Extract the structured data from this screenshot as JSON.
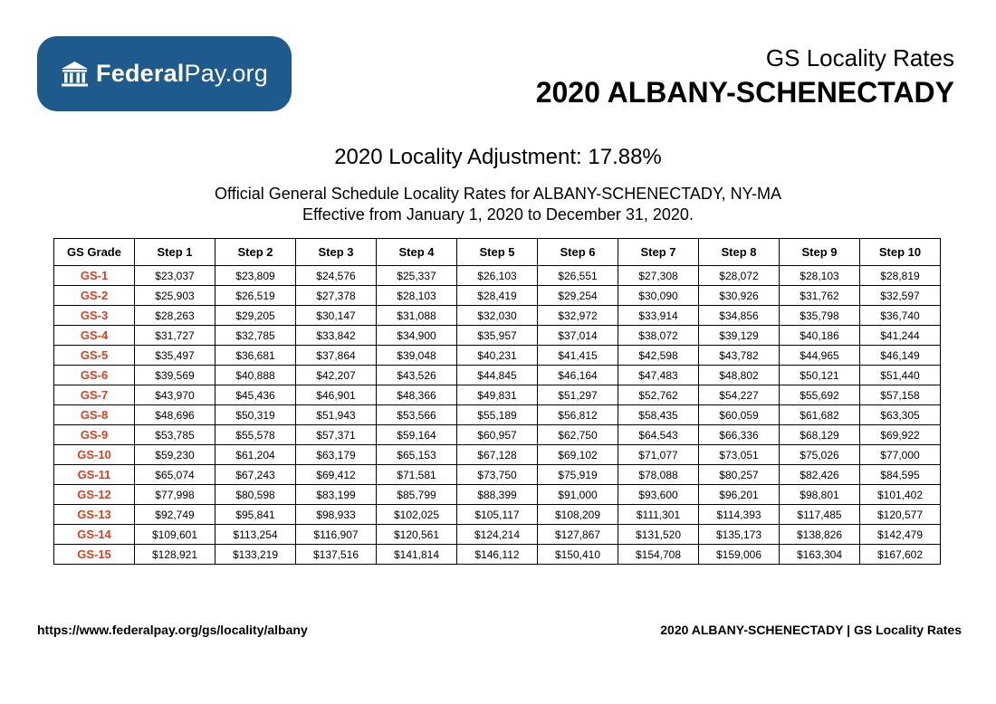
{
  "logo": {
    "brand_bold": "Federal",
    "brand_regular": "Pay.org",
    "icon": "building-icon"
  },
  "header": {
    "subtitle": "GS Locality Rates",
    "title": "2020 ALBANY-SCHENECTADY"
  },
  "adjustment": "2020 Locality Adjustment: 17.88%",
  "official_line1": "Official General Schedule Locality Rates for ALBANY-SCHENECTADY, NY-MA",
  "official_line2": "Effective from January 1, 2020 to December 31, 2020.",
  "table": {
    "headers": [
      "GS Grade",
      "Step 1",
      "Step 2",
      "Step 3",
      "Step 4",
      "Step 5",
      "Step 6",
      "Step 7",
      "Step 8",
      "Step 9",
      "Step 10"
    ],
    "rows": [
      [
        "GS-1",
        "$23,037",
        "$23,809",
        "$24,576",
        "$25,337",
        "$26,103",
        "$26,551",
        "$27,308",
        "$28,072",
        "$28,103",
        "$28,819"
      ],
      [
        "GS-2",
        "$25,903",
        "$26,519",
        "$27,378",
        "$28,103",
        "$28,419",
        "$29,254",
        "$30,090",
        "$30,926",
        "$31,762",
        "$32,597"
      ],
      [
        "GS-3",
        "$28,263",
        "$29,205",
        "$30,147",
        "$31,088",
        "$32,030",
        "$32,972",
        "$33,914",
        "$34,856",
        "$35,798",
        "$36,740"
      ],
      [
        "GS-4",
        "$31,727",
        "$32,785",
        "$33,842",
        "$34,900",
        "$35,957",
        "$37,014",
        "$38,072",
        "$39,129",
        "$40,186",
        "$41,244"
      ],
      [
        "GS-5",
        "$35,497",
        "$36,681",
        "$37,864",
        "$39,048",
        "$40,231",
        "$41,415",
        "$42,598",
        "$43,782",
        "$44,965",
        "$46,149"
      ],
      [
        "GS-6",
        "$39,569",
        "$40,888",
        "$42,207",
        "$43,526",
        "$44,845",
        "$46,164",
        "$47,483",
        "$48,802",
        "$50,121",
        "$51,440"
      ],
      [
        "GS-7",
        "$43,970",
        "$45,436",
        "$46,901",
        "$48,366",
        "$49,831",
        "$51,297",
        "$52,762",
        "$54,227",
        "$55,692",
        "$57,158"
      ],
      [
        "GS-8",
        "$48,696",
        "$50,319",
        "$51,943",
        "$53,566",
        "$55,189",
        "$56,812",
        "$58,435",
        "$60,059",
        "$61,682",
        "$63,305"
      ],
      [
        "GS-9",
        "$53,785",
        "$55,578",
        "$57,371",
        "$59,164",
        "$60,957",
        "$62,750",
        "$64,543",
        "$66,336",
        "$68,129",
        "$69,922"
      ],
      [
        "GS-10",
        "$59,230",
        "$61,204",
        "$63,179",
        "$65,153",
        "$67,128",
        "$69,102",
        "$71,077",
        "$73,051",
        "$75,026",
        "$77,000"
      ],
      [
        "GS-11",
        "$65,074",
        "$67,243",
        "$69,412",
        "$71,581",
        "$73,750",
        "$75,919",
        "$78,088",
        "$80,257",
        "$82,426",
        "$84,595"
      ],
      [
        "GS-12",
        "$77,998",
        "$80,598",
        "$83,199",
        "$85,799",
        "$88,399",
        "$91,000",
        "$93,600",
        "$96,201",
        "$98,801",
        "$101,402"
      ],
      [
        "GS-13",
        "$92,749",
        "$95,841",
        "$98,933",
        "$102,025",
        "$105,117",
        "$108,209",
        "$111,301",
        "$114,393",
        "$117,485",
        "$120,577"
      ],
      [
        "GS-14",
        "$109,601",
        "$113,254",
        "$116,907",
        "$120,561",
        "$124,214",
        "$127,867",
        "$131,520",
        "$135,173",
        "$138,826",
        "$142,479"
      ],
      [
        "GS-15",
        "$128,921",
        "$133,219",
        "$137,516",
        "$141,814",
        "$146,112",
        "$150,410",
        "$154,708",
        "$159,006",
        "$163,304",
        "$167,602"
      ]
    ]
  },
  "footer": {
    "url": "https://www.federalpay.org/gs/locality/albany",
    "label": "2020 ALBANY-SCHENECTADY | GS Locality Rates"
  },
  "colors": {
    "logo_bg": "#1f5a8c",
    "grade_text": "#d9401f"
  }
}
